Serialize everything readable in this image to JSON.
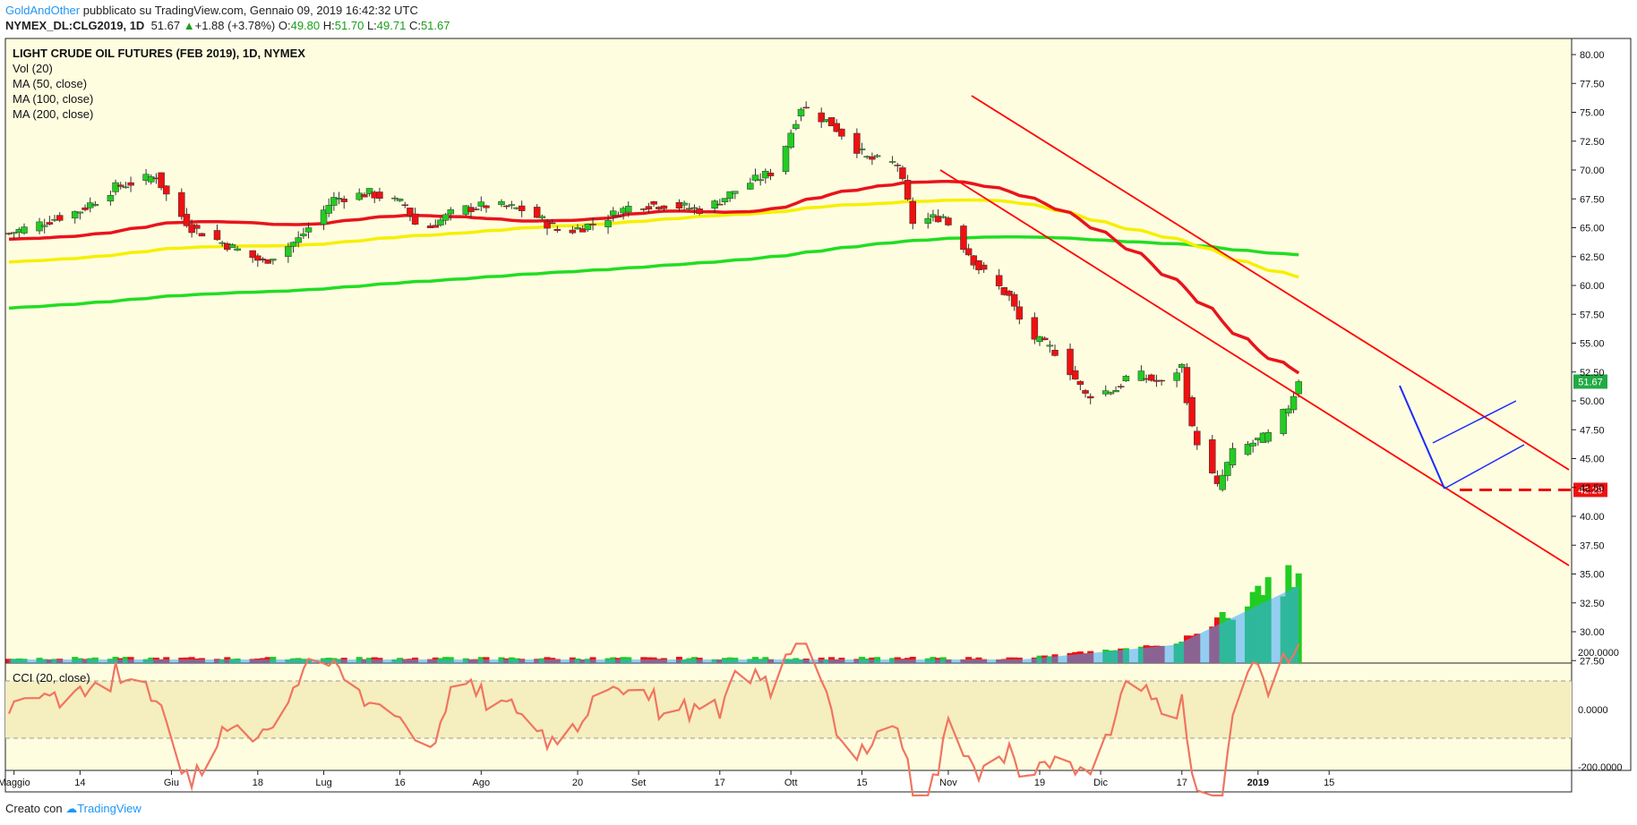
{
  "header": {
    "author": "GoldAndOther",
    "published": " pubblicato su TradingView.com, Gennaio 09, 2019 16:42:32 UTC",
    "symbol": "NYMEX_DL:CLG2019, 1D",
    "last": "51.67",
    "arrow": "▲",
    "change": "+1.88 (+3.78%)",
    "o_label": "O:",
    "o_val": "49.80",
    "h_label": "H:",
    "h_val": "51.70",
    "l_label": "L:",
    "l_val": "49.71",
    "c_label": "C:",
    "c_val": "51.67"
  },
  "footer": {
    "created": "Creato con",
    "brand": "TradingView"
  },
  "colors": {
    "pane_bg": "#fffde0",
    "bull": "#22cc22",
    "bear": "#ee1111",
    "ma50": "#e8141c",
    "ma100": "#f5f000",
    "ma200": "#22dd22",
    "channel": "#ff0000",
    "blue_lines": "#1a2aff",
    "cci": "#f07560",
    "last_price_tag": "#22aa44",
    "support_tag": "#ee1111"
  },
  "chart_data": {
    "type": "candlestick",
    "title": "LIGHT CRUDE OIL FUTURES (FEB 2019), 1D, NYMEX",
    "legend": [
      "Vol (20)",
      "MA (50, close)",
      "MA (100, close)",
      "MA (200, close)"
    ],
    "price_ticks": [
      "80.00",
      "77.50",
      "75.00",
      "72.50",
      "70.00",
      "67.50",
      "65.00",
      "62.50",
      "60.00",
      "57.50",
      "55.00",
      "52.50",
      "50.00",
      "47.50",
      "45.00",
      "42.50",
      "40.00",
      "37.50",
      "35.00",
      "32.50",
      "30.00",
      "27.50"
    ],
    "x_ticks": [
      "Maggio",
      "14",
      "Giu",
      "18",
      "Lug",
      "16",
      "Ago",
      "20",
      "Set",
      "17",
      "Ott",
      "15",
      "Nov",
      "19",
      "Dic",
      "17",
      "2019",
      "15"
    ],
    "last_price": 51.67,
    "support_level": 42.29,
    "price_key_points": [
      [
        "Apr 30",
        64.5
      ],
      [
        "May 14",
        66.5
      ],
      [
        "May 21",
        68.5
      ],
      [
        "May 29",
        69.5
      ],
      [
        "Jun 1",
        67.0
      ],
      [
        "Jun 5",
        65.0
      ],
      [
        "Jun 12",
        63.5
      ],
      [
        "Jun 19",
        62.0
      ],
      [
        "Jun 26",
        64.0
      ],
      [
        "Jul 3",
        67.5
      ],
      [
        "Jul 10",
        68.0
      ],
      [
        "Jul 17",
        67.0
      ],
      [
        "Jul 20",
        64.5
      ],
      [
        "Jul 27",
        66.5
      ],
      [
        "Aug 3",
        67.0
      ],
      [
        "Aug 10",
        66.5
      ],
      [
        "Aug 17",
        64.5
      ],
      [
        "Aug 24",
        65.5
      ],
      [
        "Aug 31",
        67.0
      ],
      [
        "Sep 7",
        67.0
      ],
      [
        "Sep 14",
        66.5
      ],
      [
        "Sep 21",
        68.5
      ],
      [
        "Sep 28",
        70.0
      ],
      [
        "Oct 3",
        75.5
      ],
      [
        "Oct 9",
        74.0
      ],
      [
        "Oct 16",
        71.0
      ],
      [
        "Oct 22",
        70.5
      ],
      [
        "Oct 25",
        65.5
      ],
      [
        "Oct 31",
        66.0
      ],
      [
        "Nov 7",
        61.5
      ],
      [
        "Nov 13",
        59.0
      ],
      [
        "Nov 16",
        56.0
      ],
      [
        "Nov 23",
        54.0
      ],
      [
        "Nov 28",
        50.5
      ],
      [
        "Dec 4",
        51.0
      ],
      [
        "Dec 7",
        52.5
      ],
      [
        "Dec 13",
        51.5
      ],
      [
        "Dec 17",
        53.0
      ],
      [
        "Dec 19",
        47.5
      ],
      [
        "Dec 24",
        42.5
      ],
      [
        "Dec 27",
        45.5
      ],
      [
        "Jan 3",
        47.0
      ],
      [
        "Jan 7",
        49.5
      ],
      [
        "Jan 9",
        51.67
      ]
    ],
    "cci_label": "CCI (20, close)",
    "cci_ticks": [
      "200.0000",
      "0.0000",
      "-200.0000"
    ],
    "cci_guide_levels": [
      100,
      -100
    ]
  }
}
